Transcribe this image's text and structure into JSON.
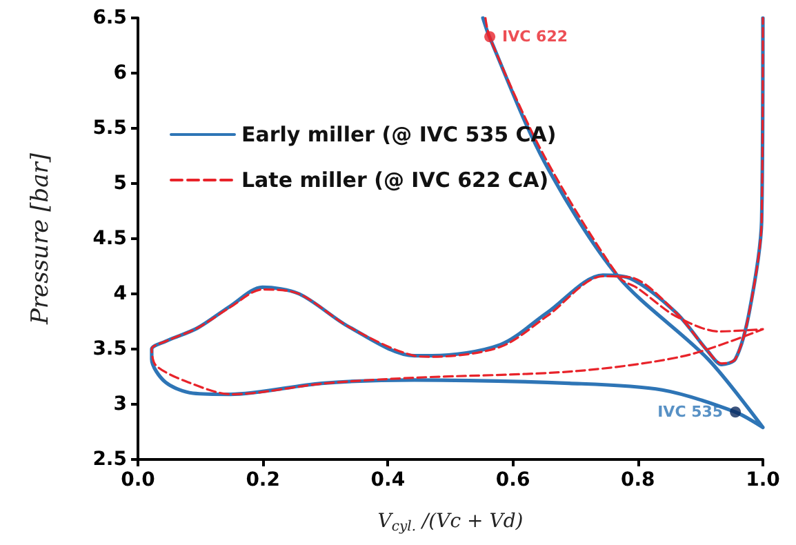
{
  "chart_data": {
    "type": "line",
    "xlabel": "V$_{cyl.}$ /(Vc + Vd)",
    "ylabel": "Pressure [bar]",
    "xlim": [
      0,
      1
    ],
    "xticks": [
      {
        "value": 0,
        "label": "0.0"
      },
      {
        "value": 0.2,
        "label": "0.2"
      },
      {
        "value": 0.4,
        "label": "0.4"
      },
      {
        "value": 0.6,
        "label": "0.6"
      },
      {
        "value": 0.8,
        "label": "0.8"
      },
      {
        "value": 1,
        "label": "1.0"
      }
    ],
    "ylim": [
      2.5,
      6.5
    ],
    "yticks": [
      2.5,
      3,
      3.5,
      4,
      4.5,
      5,
      5.5,
      6,
      6.5
    ],
    "grid": false,
    "legend": "left",
    "marker": "none",
    "series": [
      {
        "name": "Early miller (@ IVC 535 CA)",
        "color": "#2e75b6",
        "line_style": "solid",
        "x": [
          1.0,
          0.998,
          0.978,
          0.956,
          0.934,
          0.912,
          0.861,
          0.788,
          0.744,
          0.655,
          0.58,
          0.47,
          0.442,
          0.338,
          0.258,
          0.199,
          0.148,
          0.095,
          0.044,
          0.022,
          0.022,
          0.044,
          0.088,
          0.148,
          0.294,
          0.442,
          0.69,
          0.839,
          0.956,
          1.0,
          0.912,
          0.768,
          0.65,
          0.563,
          0.552
        ],
        "values": [
          6.5,
          4.66,
          3.83,
          3.41,
          3.36,
          3.48,
          3.83,
          4.14,
          4.17,
          3.83,
          3.54,
          3.44,
          3.44,
          3.7,
          4.0,
          4.06,
          3.89,
          3.69,
          3.57,
          3.5,
          3.41,
          3.2,
          3.1,
          3.09,
          3.19,
          3.22,
          3.19,
          3.13,
          2.93,
          2.79,
          3.41,
          4.16,
          5.2,
          6.32,
          6.5
        ]
      },
      {
        "name": "Late miller (@ IVC 622 CA)",
        "color": "#e8232a",
        "line_style": "dashed",
        "x": [
          0.556,
          0.563,
          0.65,
          0.77,
          0.8,
          0.86,
          0.93,
          1.0,
          0.876,
          0.7,
          0.44,
          0.3,
          0.15,
          0.08,
          0.029,
          0.022,
          0.044,
          0.095,
          0.148,
          0.199,
          0.258,
          0.338,
          0.442,
          0.47,
          0.58,
          0.655,
          0.744,
          0.788,
          0.861,
          0.912,
          0.934,
          0.956,
          0.978,
          0.998,
          1.0
        ],
        "values": [
          6.5,
          6.32,
          5.25,
          4.15,
          4.05,
          3.8,
          3.66,
          3.68,
          3.44,
          3.3,
          3.24,
          3.19,
          3.09,
          3.2,
          3.35,
          3.5,
          3.57,
          3.69,
          3.88,
          4.04,
          4.0,
          3.7,
          3.44,
          3.43,
          3.52,
          3.8,
          4.16,
          4.15,
          3.83,
          3.48,
          3.37,
          3.41,
          3.83,
          4.66,
          6.5
        ]
      },
      {
        "type": "scatter",
        "marker": "circle",
        "color": "#e8232a",
        "x": [
          0.563
        ],
        "values": [
          6.33
        ]
      },
      {
        "type": "scatter",
        "marker": "circle",
        "color": "#0d2b5e",
        "x": [
          0.956
        ],
        "values": [
          2.93
        ]
      }
    ],
    "annotations": [
      {
        "text": "IVC 622",
        "x": 0.563,
        "y": 6.33
      },
      {
        "text": "IVC 535",
        "x": 0.956,
        "y": 2.93
      }
    ]
  }
}
